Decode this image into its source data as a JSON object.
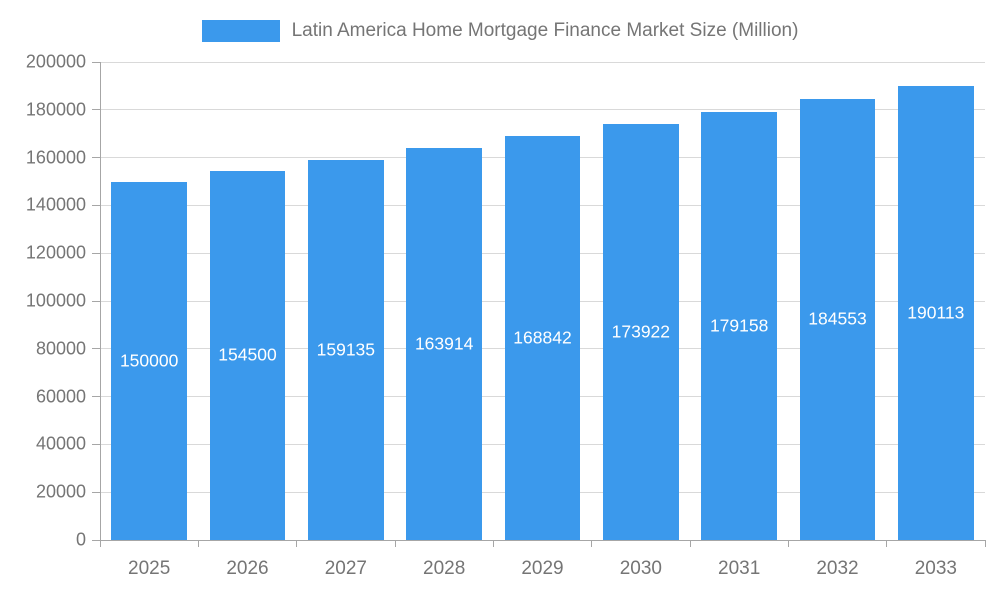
{
  "colors": {
    "bar": "#3b99ec",
    "title_text": "#757575",
    "axis_text": "#757575",
    "grid_line": "#d9d9d9",
    "axis_line": "#a6a6a6",
    "bar_label_text": "#ffffff",
    "background": "#ffffff"
  },
  "chart_data": {
    "type": "bar",
    "title": "Latin America Home Mortgage Finance Market Size (Million)",
    "categories": [
      "2025",
      "2026",
      "2027",
      "2028",
      "2029",
      "2030",
      "2031",
      "2032",
      "2033"
    ],
    "values": [
      150000,
      154500,
      159135,
      163914,
      168842,
      173922,
      179158,
      184553,
      190113
    ],
    "series": [
      {
        "name": "Latin America Home Mortgage Finance Market Size (Million)",
        "values": [
          150000,
          154500,
          159135,
          163914,
          168842,
          173922,
          179158,
          184553,
          190113
        ]
      }
    ],
    "xlabel": "",
    "ylabel": "",
    "ylim": [
      0,
      200000
    ],
    "ytick_step": 20000,
    "ytick_labels": [
      "0",
      "20000",
      "40000",
      "60000",
      "80000",
      "100000",
      "120000",
      "140000",
      "160000",
      "180000",
      "200000"
    ],
    "grid": true,
    "legend_position": "top",
    "data_labels": true
  }
}
